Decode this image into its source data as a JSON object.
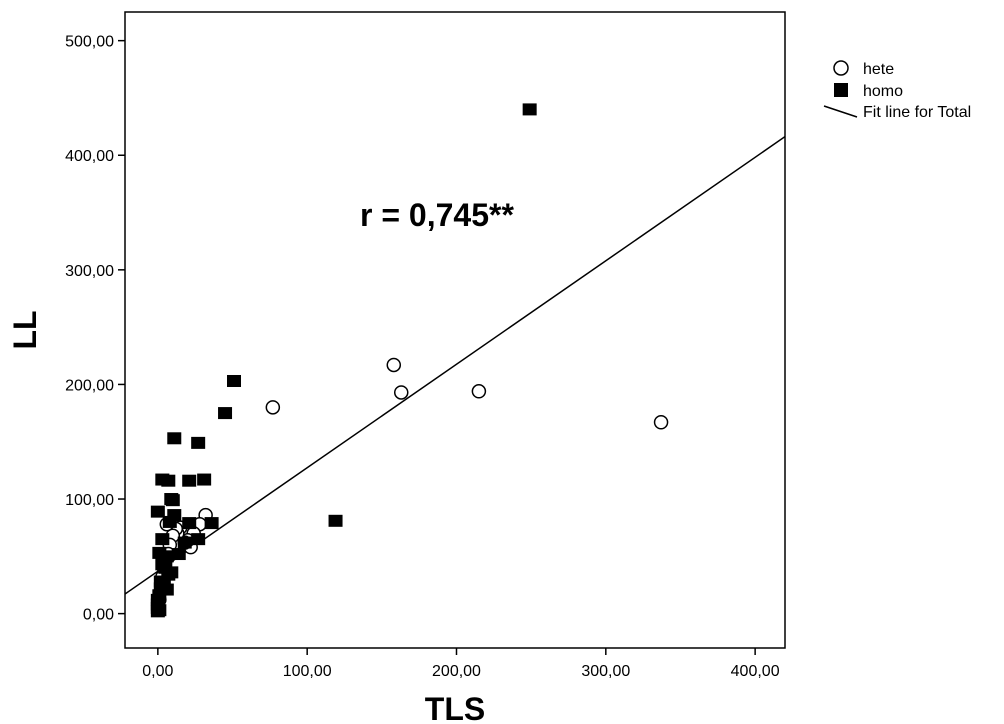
{
  "chart_data": {
    "type": "scatter",
    "title": "",
    "xlabel": "TLS",
    "ylabel": "LL",
    "xlim": [
      -22,
      420
    ],
    "ylim": [
      -30,
      525
    ],
    "x_ticks": [
      0,
      100,
      200,
      300,
      400
    ],
    "x_tick_labels": [
      "0,00",
      "100,00",
      "200,00",
      "300,00",
      "400,00"
    ],
    "y_ticks": [
      0,
      100,
      200,
      300,
      400,
      500
    ],
    "y_tick_labels": [
      "0,00",
      "100,00",
      "200,00",
      "300,00",
      "400,00",
      "500,00"
    ],
    "grid": false,
    "legend_position": "outside-top-right",
    "annotation": "r = 0,745**",
    "series": [
      {
        "name": "hete",
        "marker": "open-circle",
        "points": [
          [
            158,
            217
          ],
          [
            163,
            193
          ],
          [
            215,
            194
          ],
          [
            337,
            167
          ],
          [
            77,
            180
          ],
          [
            32,
            86
          ],
          [
            28,
            78
          ],
          [
            24,
            70
          ],
          [
            22,
            58
          ],
          [
            20,
            64
          ],
          [
            18,
            62
          ],
          [
            15,
            75
          ],
          [
            13,
            70
          ],
          [
            12,
            74
          ],
          [
            10,
            68
          ],
          [
            8,
            60
          ],
          [
            7,
            52
          ],
          [
            6,
            78
          ],
          [
            5,
            46
          ],
          [
            4,
            40
          ],
          [
            3,
            32
          ],
          [
            2,
            20
          ],
          [
            1,
            12
          ]
        ]
      },
      {
        "name": "homo",
        "marker": "filled-square",
        "points": [
          [
            249,
            440
          ],
          [
            51,
            203
          ],
          [
            45,
            175
          ],
          [
            11,
            153
          ],
          [
            27,
            149
          ],
          [
            3,
            117
          ],
          [
            7,
            116
          ],
          [
            21,
            116
          ],
          [
            31,
            117
          ],
          [
            9,
            100
          ],
          [
            10,
            99
          ],
          [
            0,
            89
          ],
          [
            11,
            86
          ],
          [
            8,
            80
          ],
          [
            21,
            79
          ],
          [
            36,
            79
          ],
          [
            119,
            81
          ],
          [
            27,
            65
          ],
          [
            18,
            62
          ],
          [
            3,
            65
          ],
          [
            14,
            52
          ],
          [
            1,
            53
          ],
          [
            6,
            50
          ],
          [
            3,
            43
          ],
          [
            9,
            36
          ],
          [
            7,
            34
          ],
          [
            4,
            26
          ],
          [
            6,
            21
          ],
          [
            2,
            22
          ],
          [
            1,
            16
          ],
          [
            0,
            12
          ],
          [
            0,
            8
          ],
          [
            0,
            5
          ],
          [
            1,
            3
          ],
          [
            0,
            2
          ],
          [
            2,
            28
          ],
          [
            5,
            40
          ]
        ]
      }
    ],
    "fit_line": {
      "name": "Fit line for Total",
      "intercept": 37,
      "slope": 0.903
    }
  }
}
